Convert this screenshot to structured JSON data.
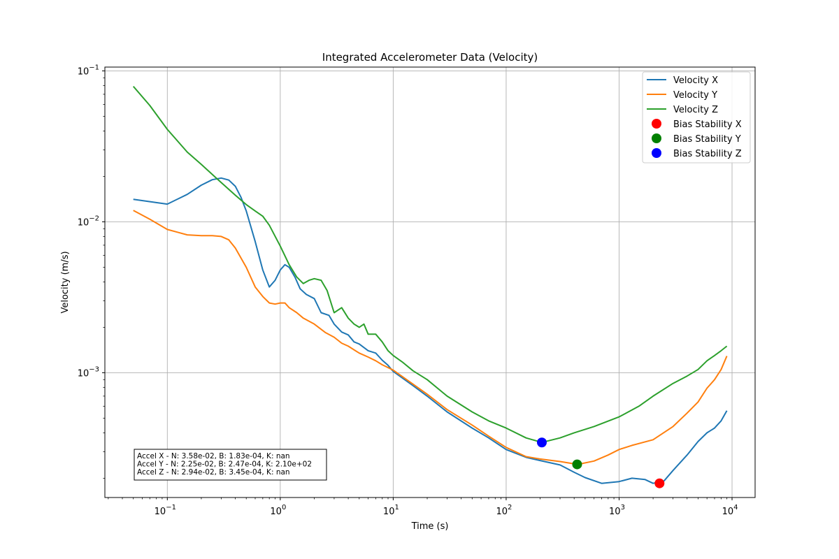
{
  "chart_data": {
    "type": "line",
    "title": "Integrated Accelerometer Data (Velocity)",
    "xlabel": "Time (s)",
    "ylabel": "Velocity (m/s)",
    "xscale": "log",
    "yscale": "log",
    "xlim": [
      0.028,
      16000
    ],
    "ylim": [
      0.000149,
      0.106
    ],
    "grid": true,
    "legend_position": "top-right",
    "x_ticks": [
      {
        "value": 0.1,
        "base": "10",
        "exp": "−1"
      },
      {
        "value": 1,
        "base": "10",
        "exp": "0"
      },
      {
        "value": 10,
        "base": "10",
        "exp": "1"
      },
      {
        "value": 100,
        "base": "10",
        "exp": "2"
      },
      {
        "value": 1000,
        "base": "10",
        "exp": "3"
      },
      {
        "value": 10000,
        "base": "10",
        "exp": "4"
      }
    ],
    "y_ticks": [
      {
        "value": 0.001,
        "base": "10",
        "exp": "−3"
      },
      {
        "value": 0.01,
        "base": "10",
        "exp": "−2"
      },
      {
        "value": 0.1,
        "base": "10",
        "exp": "−1"
      }
    ],
    "series": [
      {
        "name": "Velocity X",
        "color": "#1f77b4",
        "points": [
          [
            0.05,
            0.0141
          ],
          [
            0.1,
            0.0131
          ],
          [
            0.15,
            0.0152
          ],
          [
            0.2,
            0.0175
          ],
          [
            0.25,
            0.019
          ],
          [
            0.3,
            0.0195
          ],
          [
            0.35,
            0.0189
          ],
          [
            0.4,
            0.0172
          ],
          [
            0.45,
            0.0145
          ],
          [
            0.5,
            0.0118
          ],
          [
            0.6,
            0.0074
          ],
          [
            0.7,
            0.0048
          ],
          [
            0.8,
            0.0037
          ],
          [
            0.9,
            0.0041
          ],
          [
            1.0,
            0.0048
          ],
          [
            1.1,
            0.0052
          ],
          [
            1.2,
            0.005
          ],
          [
            1.35,
            0.0043
          ],
          [
            1.5,
            0.0036
          ],
          [
            1.7,
            0.0033
          ],
          [
            2.0,
            0.0031
          ],
          [
            2.3,
            0.0025
          ],
          [
            2.7,
            0.0024
          ],
          [
            3.0,
            0.0021
          ],
          [
            3.5,
            0.00186
          ],
          [
            4.0,
            0.00178
          ],
          [
            4.5,
            0.0016
          ],
          [
            5.0,
            0.00155
          ],
          [
            6.0,
            0.0014
          ],
          [
            7.0,
            0.00135
          ],
          [
            8.0,
            0.00121
          ],
          [
            9.0,
            0.00112
          ],
          [
            10,
            0.00102
          ],
          [
            15,
            0.00082
          ],
          [
            20,
            0.0007
          ],
          [
            30,
            0.00055
          ],
          [
            50,
            0.00043
          ],
          [
            70,
            0.00037
          ],
          [
            100,
            0.00031
          ],
          [
            150,
            0.000275
          ],
          [
            200,
            0.000262
          ],
          [
            300,
            0.000245
          ],
          [
            400,
            0.000219
          ],
          [
            500,
            0.000202
          ],
          [
            700,
            0.000185
          ],
          [
            1000,
            0.00019
          ],
          [
            1300,
            0.0002
          ],
          [
            1700,
            0.000196
          ],
          [
            2000,
            0.000185
          ],
          [
            2500,
            0.000192
          ],
          [
            3000,
            0.000225
          ],
          [
            4000,
            0.000285
          ],
          [
            5000,
            0.00035
          ],
          [
            6000,
            0.0004
          ],
          [
            7000,
            0.00043
          ],
          [
            8000,
            0.00048
          ],
          [
            9000,
            0.00056
          ]
        ]
      },
      {
        "name": "Velocity Y",
        "color": "#ff7f0e",
        "points": [
          [
            0.05,
            0.0119
          ],
          [
            0.07,
            0.0104
          ],
          [
            0.1,
            0.0089
          ],
          [
            0.15,
            0.0082
          ],
          [
            0.2,
            0.0081
          ],
          [
            0.25,
            0.0081
          ],
          [
            0.3,
            0.008
          ],
          [
            0.35,
            0.0076
          ],
          [
            0.4,
            0.0067
          ],
          [
            0.5,
            0.005
          ],
          [
            0.6,
            0.0037
          ],
          [
            0.7,
            0.0032
          ],
          [
            0.8,
            0.0029
          ],
          [
            0.9,
            0.00285
          ],
          [
            1.0,
            0.0029
          ],
          [
            1.1,
            0.0029
          ],
          [
            1.2,
            0.0027
          ],
          [
            1.4,
            0.0025
          ],
          [
            1.6,
            0.0023
          ],
          [
            2.0,
            0.0021
          ],
          [
            2.5,
            0.00185
          ],
          [
            3.0,
            0.00172
          ],
          [
            3.5,
            0.00157
          ],
          [
            4.0,
            0.0015
          ],
          [
            5.0,
            0.00135
          ],
          [
            6.0,
            0.00127
          ],
          [
            7.0,
            0.0012
          ],
          [
            8.0,
            0.00113
          ],
          [
            10,
            0.00104
          ],
          [
            15,
            0.00084
          ],
          [
            20,
            0.00072
          ],
          [
            30,
            0.00057
          ],
          [
            50,
            0.00045
          ],
          [
            70,
            0.00038
          ],
          [
            100,
            0.00032
          ],
          [
            150,
            0.000278
          ],
          [
            200,
            0.000268
          ],
          [
            300,
            0.000258
          ],
          [
            430,
            0.000247
          ],
          [
            600,
            0.00026
          ],
          [
            800,
            0.000285
          ],
          [
            1000,
            0.00031
          ],
          [
            1300,
            0.00033
          ],
          [
            2000,
            0.00036
          ],
          [
            3000,
            0.00044
          ],
          [
            4000,
            0.00054
          ],
          [
            5000,
            0.00064
          ],
          [
            6000,
            0.00079
          ],
          [
            7000,
            0.0009
          ],
          [
            8000,
            0.00105
          ],
          [
            9000,
            0.00129
          ]
        ]
      },
      {
        "name": "Velocity Z",
        "color": "#2ca02c",
        "points": [
          [
            0.05,
            0.079
          ],
          [
            0.07,
            0.059
          ],
          [
            0.1,
            0.041
          ],
          [
            0.15,
            0.029
          ],
          [
            0.2,
            0.024
          ],
          [
            0.3,
            0.0182
          ],
          [
            0.4,
            0.015
          ],
          [
            0.5,
            0.013
          ],
          [
            0.6,
            0.0118
          ],
          [
            0.7,
            0.0109
          ],
          [
            0.8,
            0.0095
          ],
          [
            1.0,
            0.0069
          ],
          [
            1.2,
            0.0052
          ],
          [
            1.4,
            0.0043
          ],
          [
            1.6,
            0.0039
          ],
          [
            1.8,
            0.0041
          ],
          [
            2.0,
            0.0042
          ],
          [
            2.3,
            0.0041
          ],
          [
            2.6,
            0.0035
          ],
          [
            3.0,
            0.0025
          ],
          [
            3.5,
            0.0027
          ],
          [
            4.0,
            0.0023
          ],
          [
            4.5,
            0.0021
          ],
          [
            5.0,
            0.002
          ],
          [
            5.5,
            0.0021
          ],
          [
            6.0,
            0.0018
          ],
          [
            7.0,
            0.0018
          ],
          [
            8.0,
            0.0016
          ],
          [
            9.0,
            0.0014
          ],
          [
            10,
            0.0013
          ],
          [
            12,
            0.00118
          ],
          [
            15,
            0.00103
          ],
          [
            20,
            0.0009
          ],
          [
            30,
            0.0007
          ],
          [
            50,
            0.00055
          ],
          [
            70,
            0.00048
          ],
          [
            100,
            0.00043
          ],
          [
            150,
            0.00037
          ],
          [
            207,
            0.000345
          ],
          [
            300,
            0.00037
          ],
          [
            400,
            0.0004
          ],
          [
            600,
            0.00044
          ],
          [
            1000,
            0.00051
          ],
          [
            1500,
            0.0006
          ],
          [
            2000,
            0.0007
          ],
          [
            3000,
            0.00085
          ],
          [
            4000,
            0.00095
          ],
          [
            5000,
            0.00105
          ],
          [
            6000,
            0.0012
          ],
          [
            7000,
            0.0013
          ],
          [
            8000,
            0.0014
          ],
          [
            9000,
            0.0015
          ]
        ]
      }
    ],
    "markers": [
      {
        "name": "Bias Stability X",
        "color": "#ff0000",
        "x": 2280,
        "y": 0.000185
      },
      {
        "name": "Bias Stability Y",
        "color": "#008000",
        "x": 425,
        "y": 0.000247
      },
      {
        "name": "Bias Stability Z",
        "color": "#0000ff",
        "x": 207,
        "y": 0.000345
      }
    ],
    "annotation_lines": [
      "Accel X - N: 3.58e-02, B: 1.83e-04, K: nan",
      "Accel Y - N: 2.25e-02, B: 2.47e-04, K: 2.10e+02",
      "Accel Z - N: 2.94e-02, B: 3.45e-04, K: nan"
    ]
  }
}
